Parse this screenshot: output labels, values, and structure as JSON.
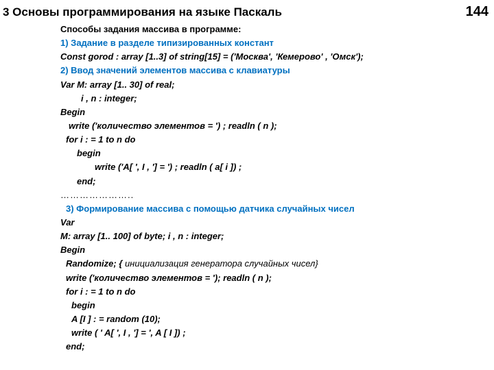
{
  "header": {
    "title": "3 Основы программирования на языке Паскаль",
    "page_number": "144"
  },
  "lines": {
    "intro": "Способы задания массива в программе:",
    "s1": "1) Задание в разделе типизированных констант",
    "s1_code": "Const    gorod : array  [1..3] of string[15] = ('Москва', 'Кемерово' , 'Омск');",
    "s2": "2) Ввод значений элементов массива с клавиатуры",
    "s2_l1": "Var    M: array [1.. 30] of real;",
    "s2_l2": "i , n : integer;",
    "s2_l3": "Begin",
    "s2_l4": "write ('количество элементов = ') ;   readln ( n );",
    "s2_l5": "for   i : = 1 to n do",
    "s2_l6": "begin",
    "s2_l7": "write ('A[ ', I , '] = ') ;  readln ( a[ i ]) ;",
    "s2_l8": "end;",
    "dots": "…………………..",
    "s3": "3) Формирование массива с помощью датчика случайных чисел",
    "s3_l1": "Var",
    "s3_l2": "M: array [1.. 100] of  byte;       i , n : integer;",
    "s3_l3": "Begin",
    "s3_rand": "Randomize; {",
    "s3_rand_tail": " инициализация генератора случайных чисел}",
    "s3_l5": "write ('количество элементов = '); readln ( n );",
    "s3_l6": "for   i : = 1 to n do",
    "s3_l7": "begin",
    "s3_l8": "A [I ] : = random (10);",
    "s3_l9": "write ( '   A[ ', I , '] = ', A [ I ]) ;",
    "s3_l10": "end;"
  }
}
